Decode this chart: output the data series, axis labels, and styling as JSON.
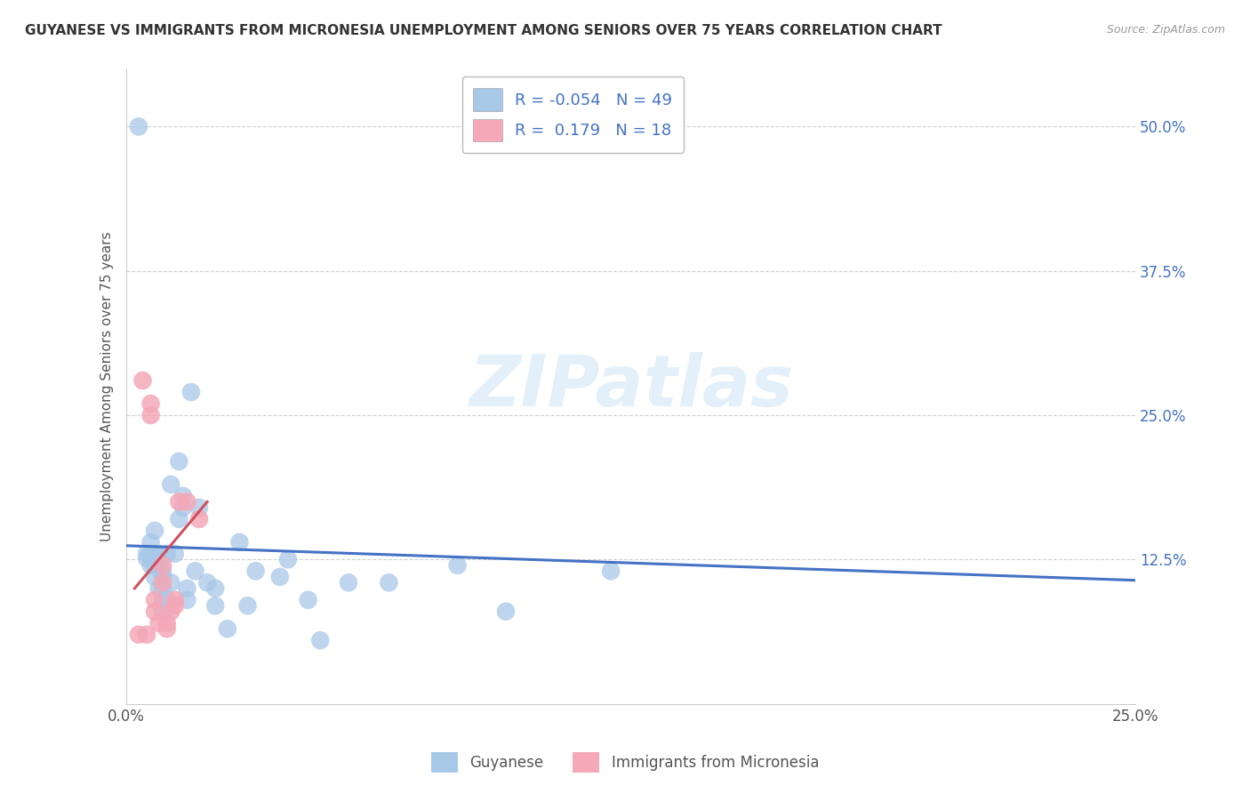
{
  "title": "GUYANESE VS IMMIGRANTS FROM MICRONESIA UNEMPLOYMENT AMONG SENIORS OVER 75 YEARS CORRELATION CHART",
  "source": "Source: ZipAtlas.com",
  "ylabel": "Unemployment Among Seniors over 75 years",
  "legend_R1": "R = -0.054",
  "legend_N1": "N = 49",
  "legend_R2": "R =  0.179",
  "legend_N2": "N = 18",
  "color_blue": "#a8c8e8",
  "color_pink": "#f4a8b8",
  "color_blue_line": "#4472c4",
  "color_pink_line": "#d05060",
  "background_color": "#ffffff",
  "grid_color": "#cccccc",
  "watermark": "ZIPatlas",
  "blue_scatter_x": [
    0.003,
    0.005,
    0.005,
    0.006,
    0.006,
    0.006,
    0.007,
    0.007,
    0.007,
    0.007,
    0.008,
    0.008,
    0.008,
    0.008,
    0.009,
    0.009,
    0.009,
    0.009,
    0.009,
    0.01,
    0.01,
    0.011,
    0.011,
    0.012,
    0.013,
    0.013,
    0.014,
    0.014,
    0.015,
    0.015,
    0.016,
    0.017,
    0.018,
    0.02,
    0.022,
    0.022,
    0.025,
    0.028,
    0.03,
    0.032,
    0.038,
    0.04,
    0.045,
    0.048,
    0.055,
    0.065,
    0.082,
    0.094,
    0.12
  ],
  "blue_scatter_y": [
    0.5,
    0.126,
    0.13,
    0.12,
    0.13,
    0.14,
    0.11,
    0.12,
    0.13,
    0.15,
    0.1,
    0.12,
    0.125,
    0.13,
    0.08,
    0.09,
    0.1,
    0.11,
    0.115,
    0.09,
    0.13,
    0.105,
    0.19,
    0.13,
    0.16,
    0.21,
    0.17,
    0.18,
    0.09,
    0.1,
    0.27,
    0.115,
    0.17,
    0.105,
    0.085,
    0.1,
    0.065,
    0.14,
    0.085,
    0.115,
    0.11,
    0.125,
    0.09,
    0.055,
    0.105,
    0.105,
    0.12,
    0.08,
    0.115
  ],
  "pink_scatter_x": [
    0.003,
    0.004,
    0.005,
    0.006,
    0.006,
    0.007,
    0.007,
    0.008,
    0.009,
    0.009,
    0.01,
    0.01,
    0.011,
    0.012,
    0.012,
    0.013,
    0.015,
    0.018
  ],
  "pink_scatter_y": [
    0.06,
    0.28,
    0.06,
    0.25,
    0.26,
    0.08,
    0.09,
    0.07,
    0.105,
    0.12,
    0.07,
    0.065,
    0.08,
    0.09,
    0.085,
    0.175,
    0.175,
    0.16
  ],
  "xlim": [
    0.0,
    0.25
  ],
  "ylim": [
    0.0,
    0.55
  ],
  "blue_line_x": [
    0.0,
    0.25
  ],
  "blue_line_y": [
    0.137,
    0.107
  ],
  "pink_line_x": [
    0.002,
    0.02
  ],
  "pink_line_y": [
    0.1,
    0.175
  ],
  "ytick_positions": [
    0.125,
    0.25,
    0.375,
    0.5
  ],
  "ytick_labels": [
    "12.5%",
    "25.0%",
    "37.5%",
    "50.0%"
  ],
  "xtick_positions": [
    0.0,
    0.25
  ],
  "xtick_labels": [
    "0.0%",
    "25.0%"
  ]
}
